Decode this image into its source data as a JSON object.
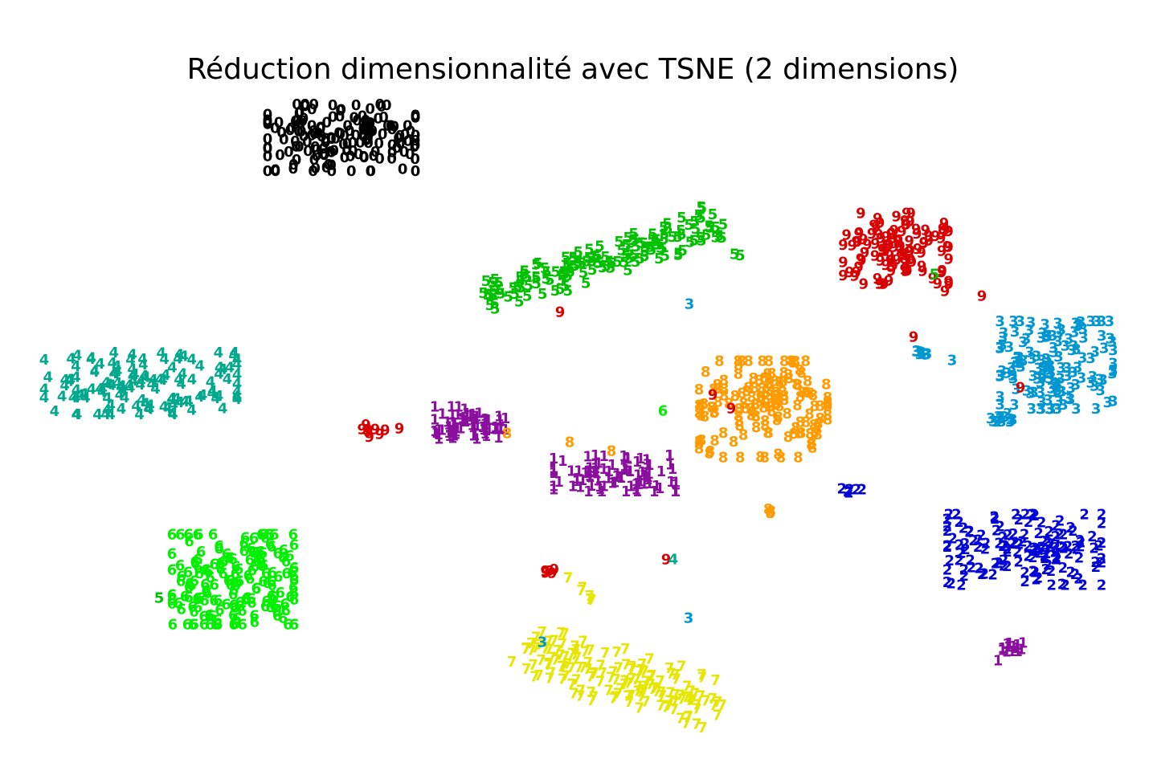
{
  "chart_data": {
    "type": "scatter",
    "title": "Réduction dimensionnalité avec TSNE (2 dimensions)",
    "xlabel": "",
    "ylabel": "",
    "axes_visible": false,
    "grid": false,
    "legend": "none",
    "xlim": [
      0,
      1440
    ],
    "ylim": [
      0,
      960
    ],
    "marker": "digit label",
    "colors": {
      "0": "#000000",
      "1": "#8b0f9e",
      "2": "#0000d8",
      "3": "#0096d2",
      "4": "#00a88c",
      "5": "#00c000",
      "6": "#00f000",
      "7": "#e6e600",
      "8": "#ff9b00",
      "9": "#d80000"
    },
    "clusters": [
      {
        "label": "0",
        "count": 160,
        "center": [
          425,
          172
        ],
        "spread": [
          115,
          52
        ],
        "seed": 11
      },
      {
        "label": "5",
        "count": 150,
        "line": [
          [
            600,
            372
          ],
          [
            900,
            275
          ]
        ],
        "spread": [
          28,
          26
        ],
        "seed": 21
      },
      {
        "label": "5",
        "count": 2,
        "center": [
          915,
          318
        ],
        "spread": [
          8,
          4
        ],
        "seed": 22
      },
      {
        "label": "9",
        "count": 110,
        "center": [
          1115,
          310
        ],
        "spread": [
          82,
          55
        ],
        "seed": 31
      },
      {
        "label": "3",
        "count": 140,
        "center": [
          1315,
          455
        ],
        "spread": [
          88,
          68
        ],
        "seed": 41
      },
      {
        "label": "3",
        "count": 12,
        "center": [
          1238,
          522
        ],
        "spread": [
          28,
          8
        ],
        "seed": 42
      },
      {
        "label": "3",
        "count": 7,
        "center": [
          1142,
          440
        ],
        "spread": [
          16,
          6
        ],
        "seed": 43
      },
      {
        "label": "4",
        "count": 130,
        "center": [
          175,
          478
        ],
        "spread": [
          150,
          48
        ],
        "seed": 51
      },
      {
        "label": "8",
        "count": 150,
        "center": [
          950,
          510
        ],
        "spread": [
          100,
          75
        ],
        "seed": 61
      },
      {
        "label": "8",
        "count": 3,
        "center": [
          952,
          637
        ],
        "spread": [
          10,
          3
        ],
        "seed": 62
      },
      {
        "label": "1",
        "count": 70,
        "center": [
          585,
          527
        ],
        "spread": [
          55,
          25
        ],
        "seed": 71
      },
      {
        "label": "1",
        "count": 90,
        "center": [
          765,
          590
        ],
        "spread": [
          95,
          28
        ],
        "seed": 72
      },
      {
        "label": "1",
        "count": 14,
        "center": [
          1258,
          812
        ],
        "spread": [
          20,
          14
        ],
        "seed": 73
      },
      {
        "label": "2",
        "count": 140,
        "center": [
          1275,
          685
        ],
        "spread": [
          120,
          55
        ],
        "seed": 81
      },
      {
        "label": "2",
        "count": 6,
        "center": [
          1060,
          610
        ],
        "spread": [
          16,
          5
        ],
        "seed": 82
      },
      {
        "label": "6",
        "count": 170,
        "center": [
          290,
          722
        ],
        "spread": [
          95,
          70
        ],
        "seed": 91
      },
      {
        "label": "7",
        "count": 150,
        "line": [
          [
            655,
            810
          ],
          [
            890,
            880
          ]
        ],
        "spread": [
          55,
          38
        ],
        "seed": 101
      },
      {
        "label": "7",
        "count": 5,
        "center": [
          730,
          740
        ],
        "spread": [
          8,
          10
        ],
        "seed": 102
      },
      {
        "label": "9",
        "count": 10,
        "center": [
          465,
          535
        ],
        "spread": [
          18,
          12
        ],
        "seed": 111
      },
      {
        "label": "9",
        "count": 6,
        "center": [
          685,
          712
        ],
        "spread": [
          8,
          6
        ],
        "seed": 112
      }
    ],
    "points": [
      {
        "label": "9",
        "x": 497,
        "y": 534
      },
      {
        "label": "8",
        "x": 631,
        "y": 540
      },
      {
        "label": "8",
        "x": 709,
        "y": 551
      },
      {
        "label": "8",
        "x": 761,
        "y": 562
      },
      {
        "label": "6",
        "x": 825,
        "y": 512
      },
      {
        "label": "9",
        "x": 887,
        "y": 492
      },
      {
        "label": "9",
        "x": 910,
        "y": 509
      },
      {
        "label": "9",
        "x": 697,
        "y": 389
      },
      {
        "label": "3",
        "x": 858,
        "y": 379
      },
      {
        "label": "9",
        "x": 1222,
        "y": 369
      },
      {
        "label": "9",
        "x": 1176,
        "y": 363
      },
      {
        "label": "9",
        "x": 1137,
        "y": 420
      },
      {
        "label": "9",
        "x": 1270,
        "y": 483
      },
      {
        "label": "3",
        "x": 1185,
        "y": 449
      },
      {
        "label": "5",
        "x": 1163,
        "y": 342
      },
      {
        "label": "9",
        "x": 829,
        "y": 697
      },
      {
        "label": "4",
        "x": 838,
        "y": 697
      },
      {
        "label": "3",
        "x": 857,
        "y": 770
      },
      {
        "label": "3",
        "x": 675,
        "y": 800
      },
      {
        "label": "7",
        "x": 707,
        "y": 720
      },
      {
        "label": "5",
        "x": 198,
        "y": 745
      }
    ]
  }
}
